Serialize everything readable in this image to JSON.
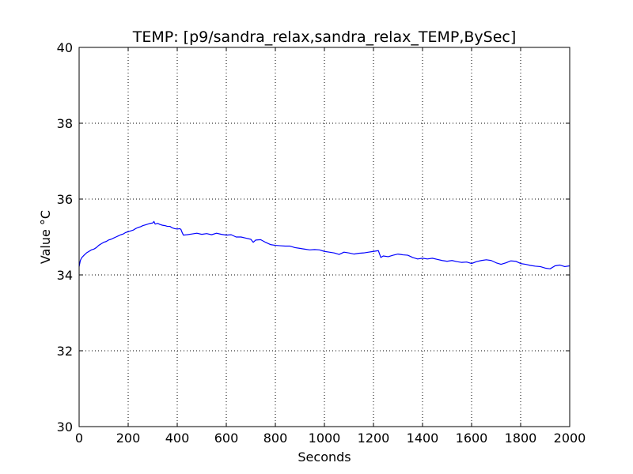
{
  "chart_data": {
    "type": "line",
    "title": "TEMP: [p9/sandra_relax,sandra_relax_TEMP,BySec]",
    "xlabel": "Seconds",
    "ylabel": "Value °C",
    "xlim": [
      0,
      2000
    ],
    "ylim": [
      30,
      40
    ],
    "xticks": [
      0,
      200,
      400,
      600,
      800,
      1000,
      1200,
      1400,
      1600,
      1800,
      2000
    ],
    "yticks": [
      30,
      32,
      34,
      36,
      38,
      40
    ],
    "grid": true,
    "legend": "none",
    "series": [
      {
        "color": "#0000ff",
        "points": [
          [
            0,
            34.22
          ],
          [
            5,
            34.38
          ],
          [
            10,
            34.45
          ],
          [
            20,
            34.52
          ],
          [
            30,
            34.58
          ],
          [
            40,
            34.62
          ],
          [
            50,
            34.66
          ],
          [
            60,
            34.68
          ],
          [
            70,
            34.72
          ],
          [
            80,
            34.78
          ],
          [
            90,
            34.82
          ],
          [
            100,
            34.86
          ],
          [
            110,
            34.88
          ],
          [
            120,
            34.92
          ],
          [
            130,
            34.94
          ],
          [
            140,
            34.97
          ],
          [
            150,
            35.0
          ],
          [
            160,
            35.03
          ],
          [
            170,
            35.06
          ],
          [
            180,
            35.08
          ],
          [
            190,
            35.12
          ],
          [
            200,
            35.14
          ],
          [
            210,
            35.16
          ],
          [
            220,
            35.18
          ],
          [
            230,
            35.22
          ],
          [
            240,
            35.25
          ],
          [
            250,
            35.27
          ],
          [
            260,
            35.3
          ],
          [
            270,
            35.32
          ],
          [
            280,
            35.34
          ],
          [
            290,
            35.36
          ],
          [
            300,
            35.37
          ],
          [
            305,
            35.41
          ],
          [
            310,
            35.34
          ],
          [
            320,
            35.36
          ],
          [
            330,
            35.33
          ],
          [
            340,
            35.31
          ],
          [
            350,
            35.3
          ],
          [
            360,
            35.28
          ],
          [
            370,
            35.28
          ],
          [
            380,
            35.24
          ],
          [
            390,
            35.22
          ],
          [
            400,
            35.21
          ],
          [
            410,
            35.22
          ],
          [
            415,
            35.2
          ],
          [
            420,
            35.12
          ],
          [
            425,
            35.05
          ],
          [
            440,
            35.06
          ],
          [
            460,
            35.08
          ],
          [
            480,
            35.1
          ],
          [
            500,
            35.07
          ],
          [
            520,
            35.09
          ],
          [
            540,
            35.06
          ],
          [
            560,
            35.1
          ],
          [
            580,
            35.07
          ],
          [
            600,
            35.05
          ],
          [
            620,
            35.06
          ],
          [
            640,
            35.0
          ],
          [
            660,
            35.0
          ],
          [
            680,
            34.97
          ],
          [
            700,
            34.94
          ],
          [
            710,
            34.86
          ],
          [
            720,
            34.92
          ],
          [
            740,
            34.93
          ],
          [
            760,
            34.86
          ],
          [
            780,
            34.8
          ],
          [
            800,
            34.78
          ],
          [
            820,
            34.77
          ],
          [
            840,
            34.76
          ],
          [
            860,
            34.76
          ],
          [
            880,
            34.72
          ],
          [
            900,
            34.7
          ],
          [
            920,
            34.68
          ],
          [
            940,
            34.66
          ],
          [
            960,
            34.67
          ],
          [
            980,
            34.66
          ],
          [
            1000,
            34.62
          ],
          [
            1020,
            34.6
          ],
          [
            1040,
            34.58
          ],
          [
            1060,
            34.54
          ],
          [
            1080,
            34.6
          ],
          [
            1100,
            34.58
          ],
          [
            1120,
            34.55
          ],
          [
            1140,
            34.57
          ],
          [
            1160,
            34.58
          ],
          [
            1180,
            34.6
          ],
          [
            1200,
            34.62
          ],
          [
            1220,
            34.64
          ],
          [
            1230,
            34.46
          ],
          [
            1240,
            34.5
          ],
          [
            1260,
            34.48
          ],
          [
            1280,
            34.52
          ],
          [
            1300,
            34.55
          ],
          [
            1320,
            34.53
          ],
          [
            1340,
            34.52
          ],
          [
            1360,
            34.46
          ],
          [
            1380,
            34.42
          ],
          [
            1400,
            34.44
          ],
          [
            1420,
            34.42
          ],
          [
            1440,
            34.44
          ],
          [
            1460,
            34.41
          ],
          [
            1480,
            34.38
          ],
          [
            1500,
            34.36
          ],
          [
            1520,
            34.38
          ],
          [
            1540,
            34.35
          ],
          [
            1560,
            34.33
          ],
          [
            1580,
            34.34
          ],
          [
            1600,
            34.3
          ],
          [
            1620,
            34.35
          ],
          [
            1640,
            34.38
          ],
          [
            1660,
            34.4
          ],
          [
            1680,
            34.38
          ],
          [
            1700,
            34.32
          ],
          [
            1720,
            34.28
          ],
          [
            1740,
            34.32
          ],
          [
            1760,
            34.37
          ],
          [
            1780,
            34.36
          ],
          [
            1800,
            34.3
          ],
          [
            1820,
            34.28
          ],
          [
            1840,
            34.25
          ],
          [
            1860,
            34.23
          ],
          [
            1880,
            34.22
          ],
          [
            1900,
            34.18
          ],
          [
            1920,
            34.16
          ],
          [
            1940,
            34.24
          ],
          [
            1960,
            34.26
          ],
          [
            1980,
            34.22
          ],
          [
            2000,
            34.24
          ]
        ]
      }
    ]
  }
}
